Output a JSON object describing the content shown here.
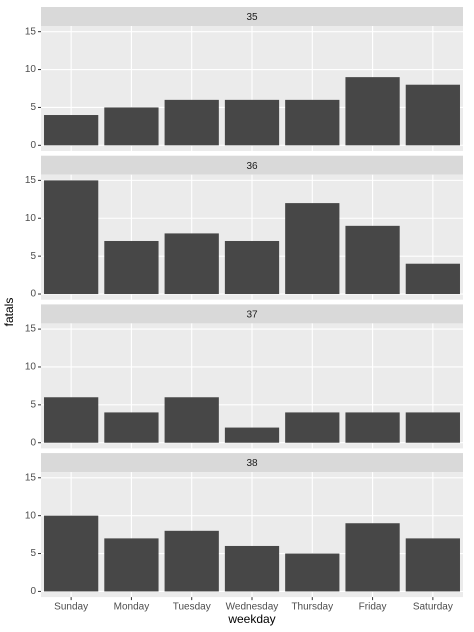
{
  "chart_data": {
    "type": "bar",
    "x_label": "weekday",
    "y_label": "fatals",
    "categories": [
      "Sunday",
      "Monday",
      "Tuesday",
      "Wednesday",
      "Thursday",
      "Friday",
      "Saturday"
    ],
    "facets": [
      {
        "title": "35",
        "values": [
          4,
          5,
          6,
          6,
          6,
          9,
          8
        ]
      },
      {
        "title": "36",
        "values": [
          15,
          7,
          8,
          7,
          12,
          9,
          4
        ]
      },
      {
        "title": "37",
        "values": [
          6,
          4,
          6,
          2,
          4,
          4,
          4
        ]
      },
      {
        "title": "38",
        "values": [
          10,
          7,
          8,
          6,
          5,
          9,
          7
        ]
      }
    ],
    "color": "#474747",
    "ylim": [
      -0.75,
      15.75
    ],
    "yticks": [
      0,
      5,
      10,
      15
    ],
    "grid": true
  }
}
